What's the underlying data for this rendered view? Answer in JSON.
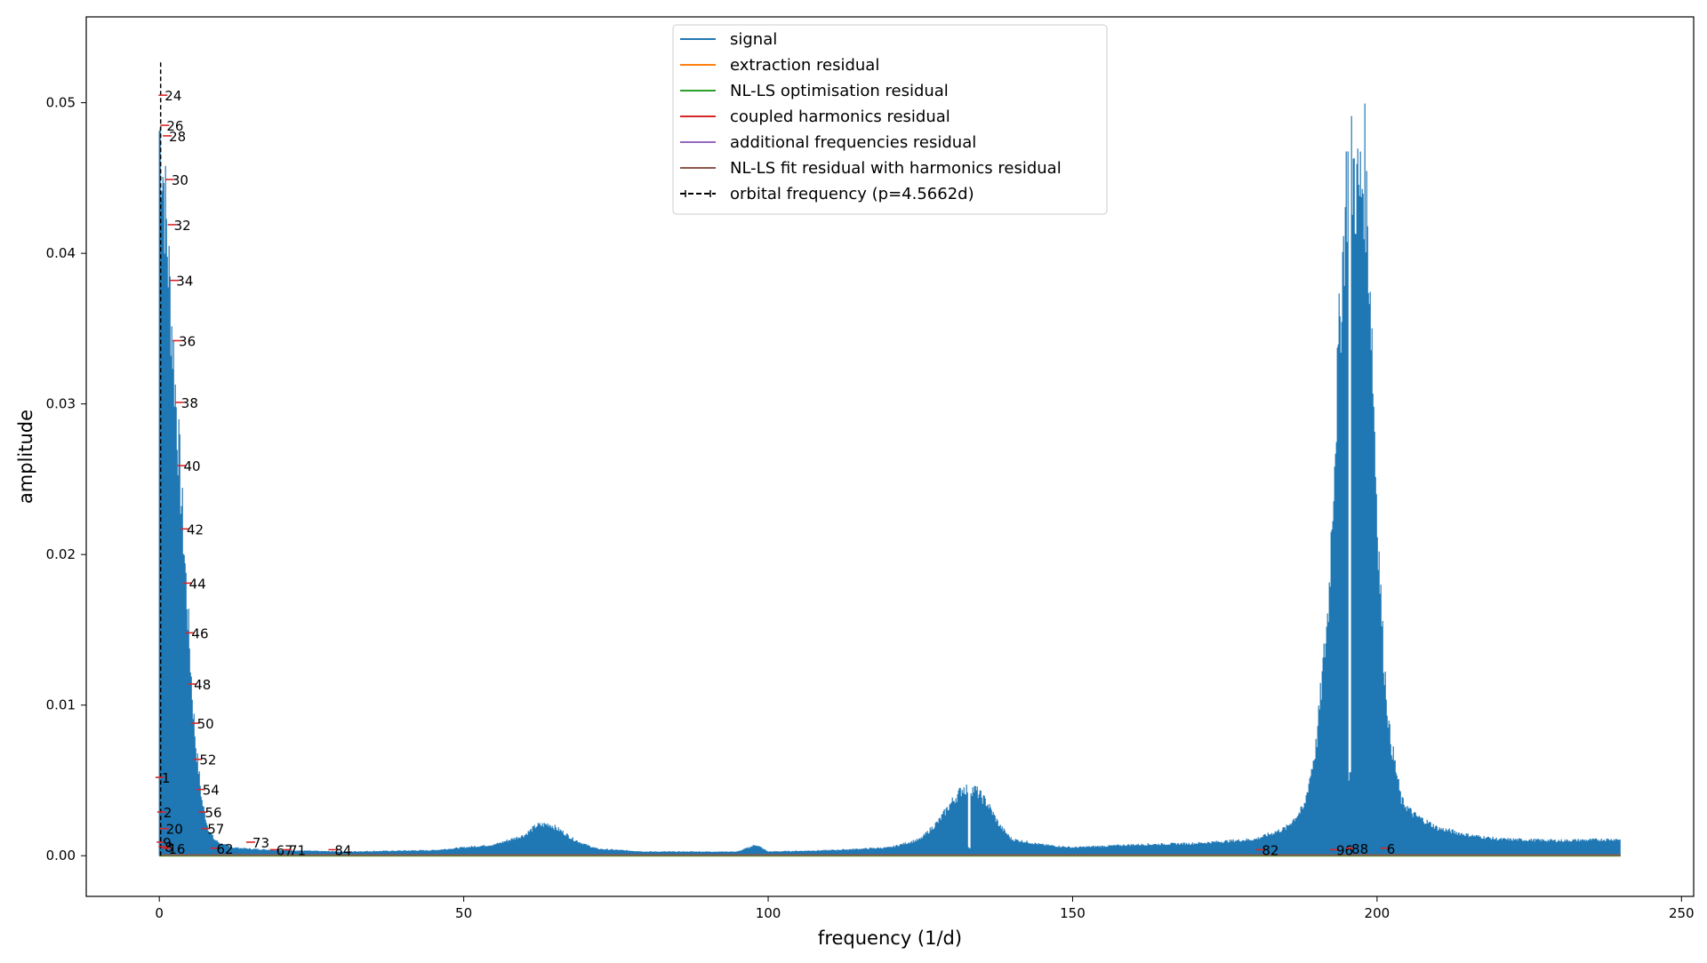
{
  "chart_data": {
    "type": "line",
    "xlabel": "frequency (1/d)",
    "ylabel": "amplitude",
    "xlim": [
      -12,
      252
    ],
    "ylim": [
      -0.0027,
      0.0557
    ],
    "x_ticks": [
      0,
      50,
      100,
      150,
      200,
      250
    ],
    "x_tick_labels": [
      "0",
      "50",
      "100",
      "150",
      "200",
      "250"
    ],
    "y_ticks": [
      0.0,
      0.01,
      0.02,
      0.03,
      0.04,
      0.05
    ],
    "y_tick_labels": [
      "0.00",
      "0.01",
      "0.02",
      "0.03",
      "0.04",
      "0.05"
    ],
    "grid": false,
    "legend_position": "top-center",
    "colors": {
      "signal": "#1f77b4",
      "extraction": "#ff7f0e",
      "nlls_opt": "#2ca02c",
      "coupled": "#d62728",
      "additional": "#9467bd",
      "nlls_harm": "#8c564b",
      "orbital": "#000000"
    },
    "signal_envelope": {
      "x": [
        0,
        0.3,
        0.6,
        1,
        1.5,
        2,
        2.5,
        3,
        3.5,
        4,
        4.5,
        5,
        5.5,
        6,
        6.5,
        7,
        8,
        9,
        10,
        12,
        15,
        20,
        30,
        45,
        55,
        60,
        62,
        64,
        66,
        68,
        70,
        72,
        76,
        80,
        95,
        98,
        100,
        110,
        120,
        125,
        128,
        130,
        132,
        134,
        136,
        138,
        140,
        145,
        150,
        160,
        170,
        180,
        185,
        188,
        190,
        192,
        194,
        195,
        196,
        197,
        198,
        199,
        200,
        201,
        202,
        204,
        206,
        210,
        215,
        220,
        230,
        240
      ],
      "values": [
        0.053,
        0.052,
        0.05,
        0.047,
        0.043,
        0.039,
        0.035,
        0.031,
        0.027,
        0.023,
        0.019,
        0.015,
        0.011,
        0.008,
        0.006,
        0.004,
        0.002,
        0.0012,
        0.0009,
        0.0006,
        0.0005,
        0.0004,
        0.0003,
        0.0004,
        0.0008,
        0.0015,
        0.0022,
        0.0023,
        0.0018,
        0.0012,
        0.0008,
        0.0005,
        0.0004,
        0.0003,
        0.0003,
        0.0008,
        0.0003,
        0.0004,
        0.0006,
        0.0012,
        0.0025,
        0.0038,
        0.0049,
        0.0048,
        0.0038,
        0.0022,
        0.0012,
        0.0008,
        0.0006,
        0.0008,
        0.0009,
        0.0012,
        0.002,
        0.0035,
        0.008,
        0.018,
        0.04,
        0.049,
        0.05,
        0.048,
        0.05,
        0.04,
        0.025,
        0.015,
        0.009,
        0.004,
        0.003,
        0.002,
        0.0015,
        0.0012,
        0.0011,
        0.0012
      ],
      "notch_x": [
        195.5,
        133
      ]
    },
    "harmonics": [
      {
        "label": "24",
        "x": 0.6,
        "y": 0.0505
      },
      {
        "label": "26",
        "x": 0.9,
        "y": 0.0485
      },
      {
        "label": "28",
        "x": 1.3,
        "y": 0.0478
      },
      {
        "label": "30",
        "x": 1.7,
        "y": 0.0449
      },
      {
        "label": "32",
        "x": 2.1,
        "y": 0.0419
      },
      {
        "label": "34",
        "x": 2.5,
        "y": 0.0382
      },
      {
        "label": "36",
        "x": 2.9,
        "y": 0.0342
      },
      {
        "label": "38",
        "x": 3.3,
        "y": 0.0301
      },
      {
        "label": "40",
        "x": 3.7,
        "y": 0.0259
      },
      {
        "label": "42",
        "x": 4.2,
        "y": 0.0217
      },
      {
        "label": "44",
        "x": 4.6,
        "y": 0.0181
      },
      {
        "label": "46",
        "x": 5.0,
        "y": 0.0148
      },
      {
        "label": "48",
        "x": 5.4,
        "y": 0.0114
      },
      {
        "label": "50",
        "x": 5.9,
        "y": 0.0088
      },
      {
        "label": "52",
        "x": 6.3,
        "y": 0.0064
      },
      {
        "label": "54",
        "x": 6.8,
        "y": 0.0044
      },
      {
        "label": "56",
        "x": 7.2,
        "y": 0.0029
      },
      {
        "label": "57",
        "x": 7.6,
        "y": 0.0018
      },
      {
        "label": "1",
        "x": 0.1,
        "y": 0.0052
      },
      {
        "label": "2",
        "x": 0.4,
        "y": 0.0029
      },
      {
        "label": "20",
        "x": 0.8,
        "y": 0.0018
      },
      {
        "label": "9",
        "x": 0.3,
        "y": 0.0009
      },
      {
        "label": "8",
        "x": 0.6,
        "y": 0.0006
      },
      {
        "label": "16",
        "x": 1.2,
        "y": 0.0005
      },
      {
        "label": "62",
        "x": 9.1,
        "y": 0.0005
      },
      {
        "label": "73",
        "x": 15.0,
        "y": 0.0009
      },
      {
        "label": "67",
        "x": 18.9,
        "y": 0.0004
      },
      {
        "label": "71",
        "x": 21.0,
        "y": 0.0004
      },
      {
        "label": "84",
        "x": 28.5,
        "y": 0.0004
      },
      {
        "label": "82",
        "x": 180.8,
        "y": 0.0004
      },
      {
        "label": "96",
        "x": 193.0,
        "y": 0.0004
      },
      {
        "label": "88",
        "x": 195.5,
        "y": 0.0005
      },
      {
        "label": "6",
        "x": 201.3,
        "y": 0.0005
      }
    ],
    "legend": [
      {
        "label": "signal",
        "color_key": "signal",
        "marker": "line"
      },
      {
        "label": "extraction residual",
        "color_key": "extraction",
        "marker": "line"
      },
      {
        "label": "NL-LS optimisation residual",
        "color_key": "nlls_opt",
        "marker": "line"
      },
      {
        "label": "coupled harmonics residual",
        "color_key": "coupled",
        "marker": "line"
      },
      {
        "label": "additional frequencies residual",
        "color_key": "additional",
        "marker": "line"
      },
      {
        "label": "NL-LS fit residual with harmonics residual",
        "color_key": "nlls_harm",
        "marker": "line"
      },
      {
        "label": "orbital frequency (p=4.5662d)",
        "color_key": "orbital",
        "marker": "errorbar"
      }
    ]
  }
}
